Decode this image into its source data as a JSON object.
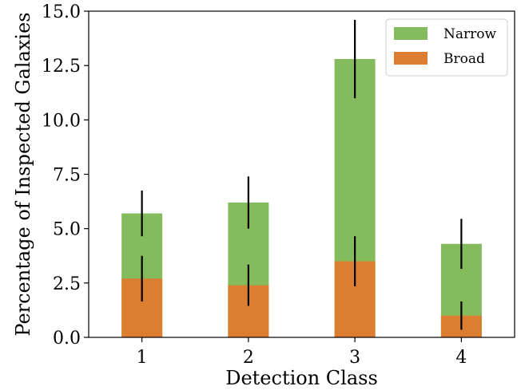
{
  "chart_data": {
    "type": "bar",
    "stacked": true,
    "categories": [
      "1",
      "2",
      "3",
      "4"
    ],
    "xlabel": "Detection Class",
    "ylabel": "Percentage of Inspected Galaxies",
    "ylim": [
      0,
      15
    ],
    "yticks": [
      "0.0",
      "2.5",
      "5.0",
      "7.5",
      "10.0",
      "12.5",
      "15.0"
    ],
    "grid": false,
    "legend_position": "top-right",
    "series": [
      {
        "name": "Broad",
        "color": "#db7e31",
        "values": [
          2.7,
          2.4,
          3.5,
          1.0
        ],
        "errors": [
          1.05,
          0.95,
          1.15,
          0.65
        ]
      },
      {
        "name": "Narrow",
        "color": "#84bb5c",
        "total_values": [
          5.7,
          6.2,
          12.8,
          4.3
        ],
        "errors": [
          1.05,
          1.2,
          1.8,
          1.15
        ]
      }
    ],
    "legend_order": [
      "Narrow",
      "Broad"
    ]
  }
}
